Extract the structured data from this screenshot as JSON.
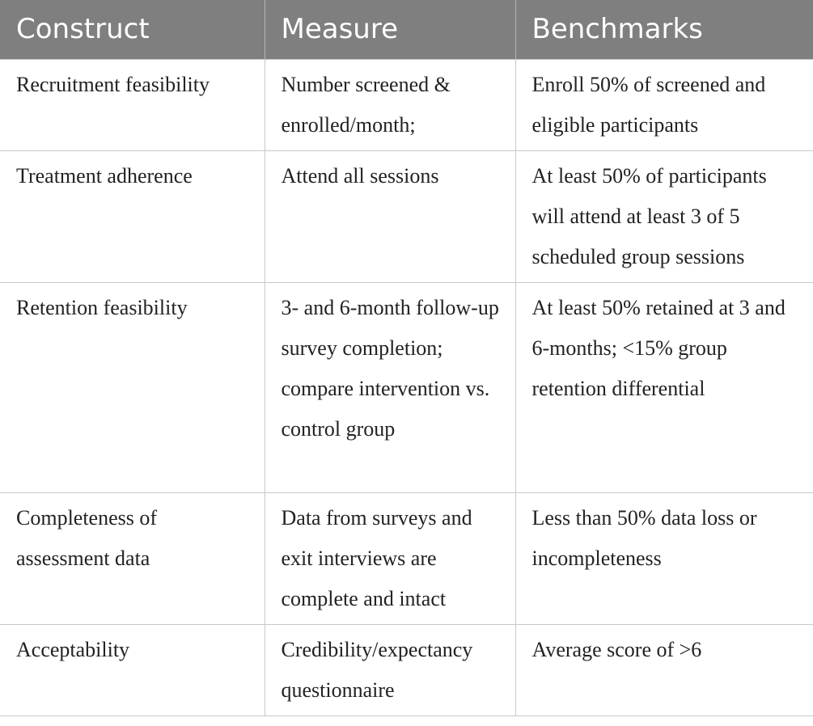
{
  "table": {
    "header": [
      "Construct",
      "Measure",
      "Benchmarks"
    ],
    "rows": [
      [
        "Recruitment feasibility",
        "Number screened & enrolled/month;",
        "Enroll 50% of screened and eligible participants"
      ],
      [
        "Treatment adherence",
        "Attend all sessions",
        "At least 50% of participants will attend at least 3 of 5 scheduled group sessions"
      ],
      [
        "Retention feasibility",
        "3- and 6-month follow-up survey completion; compare intervention vs. control group",
        "At least 50% retained at 3 and 6-months; <15% group retention differential"
      ],
      [
        "Completeness of assessment data",
        "Data from surveys and exit interviews are complete and intact",
        "Less than 50% data loss or incompleteness"
      ],
      [
        "Acceptability",
        "Credibility/expectancy questionnaire",
        "Average score of >6"
      ]
    ]
  }
}
